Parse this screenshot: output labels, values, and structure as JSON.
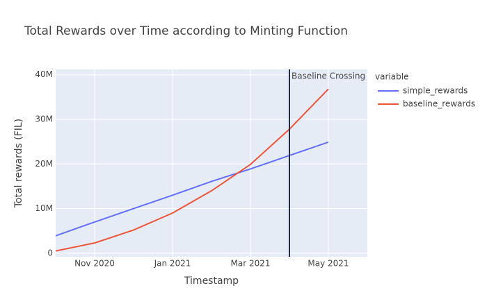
{
  "chart_data": {
    "type": "line",
    "title": "Total Rewards over Time according to Minting Function",
    "x_label": "Timestamp",
    "y_label": "Total rewards (FIL)",
    "x": [
      "2020-10",
      "2020-11",
      "2020-12",
      "2021-01",
      "2021-02",
      "2021-03",
      "2021-04",
      "2021-05"
    ],
    "series": [
      {
        "name": "simple_rewards",
        "color": "#636efa",
        "values": [
          3900000,
          7000000,
          10000000,
          13000000,
          16100000,
          18900000,
          21900000,
          24900000
        ]
      },
      {
        "name": "baseline_rewards",
        "color": "#ef553b",
        "values": [
          500000,
          2300000,
          5200000,
          9000000,
          14000000,
          19900000,
          27800000,
          36800000
        ]
      }
    ],
    "xlim": [
      "2020-10",
      "2021-06"
    ],
    "xticks": [
      {
        "value": "2020-11",
        "label": "Nov 2020"
      },
      {
        "value": "2021-01",
        "label": "Jan 2021"
      },
      {
        "value": "2021-03",
        "label": "Mar 2021"
      },
      {
        "value": "2021-05",
        "label": "May 2021"
      }
    ],
    "ylim": [
      -800000,
      41200000
    ],
    "yticks": [
      0,
      {
        "value": 10000000,
        "label": "10M"
      },
      {
        "value": 20000000,
        "label": "20M"
      },
      {
        "value": 30000000,
        "label": "30M"
      },
      {
        "value": 40000000,
        "label": "40M"
      }
    ],
    "grid": true,
    "legend_title": "variable",
    "legend_position": "right",
    "vline": {
      "x": "2021-04",
      "label": "Baseline Crossing",
      "color": "#1f2e4e"
    }
  }
}
